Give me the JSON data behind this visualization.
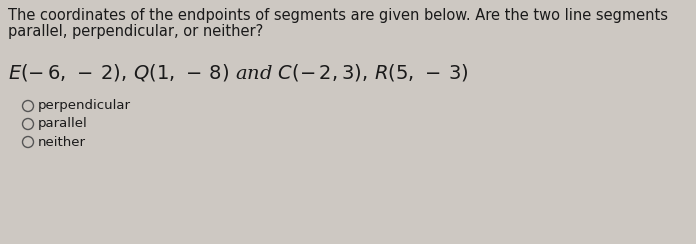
{
  "background_color": "#cdc8c2",
  "question_line1": "The coordinates of the endpoints of segments are given below. Are the two line segments",
  "question_line2": "parallel, perpendicular, or neither?",
  "options": [
    "perpendicular",
    "parallel",
    "neither"
  ],
  "text_color": "#1a1a1a",
  "option_fontsize": 9.5,
  "question_fontsize": 10.5,
  "math_fontsize": 14,
  "fig_width": 6.96,
  "fig_height": 2.44,
  "dpi": 100
}
